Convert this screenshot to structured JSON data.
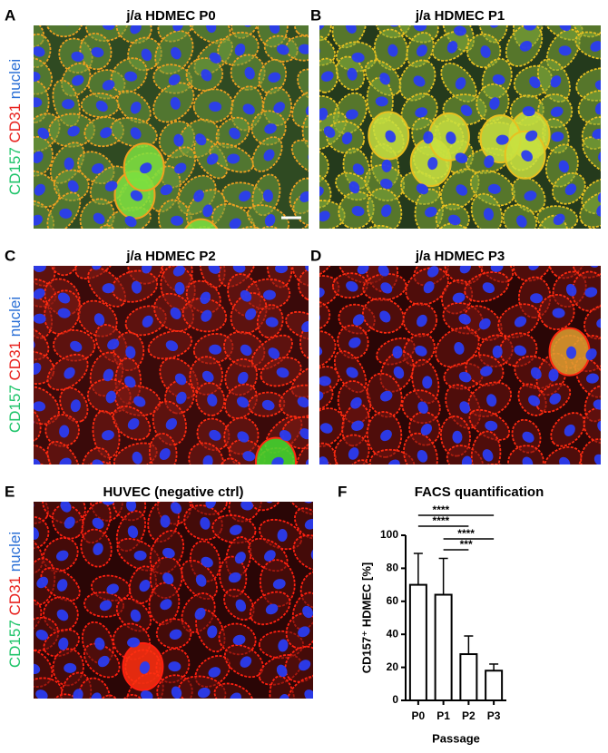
{
  "panels": [
    {
      "letter": "A",
      "title": "j/a HDMEC P0"
    },
    {
      "letter": "B",
      "title": "j/a HDMEC P1"
    },
    {
      "letter": "C",
      "title": "j/a HDMEC P2"
    },
    {
      "letter": "D",
      "title": "j/a HDMEC P3"
    },
    {
      "letter": "E",
      "title": "HUVEC (negative ctrl)"
    }
  ],
  "stain_labels": [
    {
      "text": "CD157",
      "color": "#1fc46a"
    },
    {
      "text": "CD31",
      "color": "#e8231f"
    },
    {
      "text": "nuclei",
      "color": "#2a6fd6"
    }
  ],
  "chart_data": {
    "type": "bar",
    "panel_letter": "F",
    "title": "FACS quantification",
    "x_label": "Passage",
    "y_label": "CD157⁺ HDMEC [%]",
    "categories": [
      "P0",
      "P1",
      "P2",
      "P3"
    ],
    "values": [
      70,
      64,
      28,
      18
    ],
    "errors": [
      19,
      22,
      11,
      4
    ],
    "color": "#ffffff",
    "ylim": [
      0,
      100
    ],
    "yticks": [
      0,
      20,
      40,
      60,
      80,
      100
    ],
    "significance": [
      {
        "from": "P0",
        "to": "P3",
        "label": "****"
      },
      {
        "from": "P0",
        "to": "P2",
        "label": "****"
      },
      {
        "from": "P1",
        "to": "P3",
        "label": "****"
      },
      {
        "from": "P1",
        "to": "P2",
        "label": "***"
      }
    ]
  }
}
